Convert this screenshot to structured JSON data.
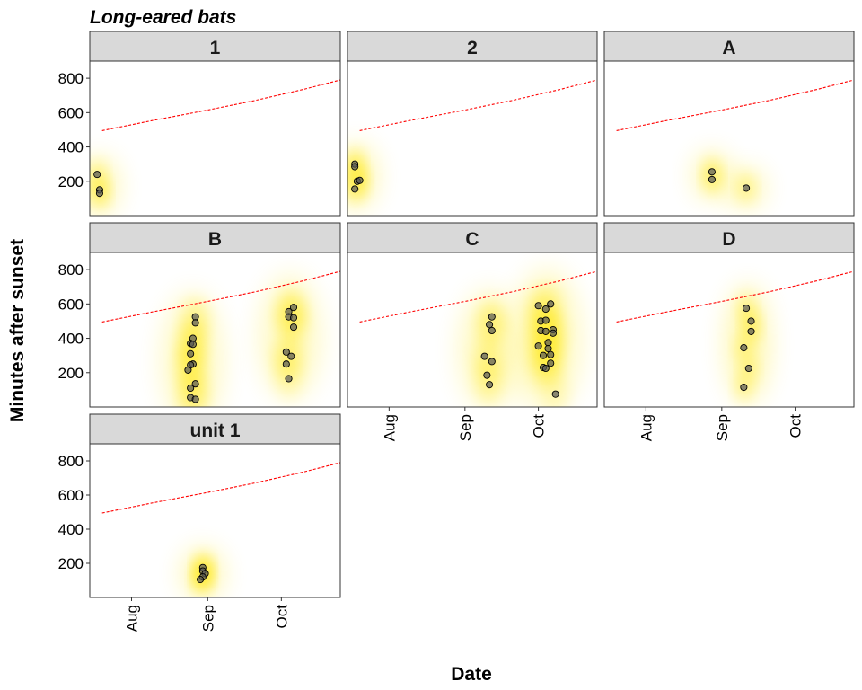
{
  "chart_data": {
    "type": "scatter",
    "title": "Long-eared bats",
    "xlabel": "Date",
    "ylabel": "Minutes after sunset",
    "x_axis": {
      "kind": "date",
      "range": [
        "2023-07-15",
        "2023-10-25"
      ],
      "ticks": [
        {
          "label": "Aug",
          "value": "2023-08-01"
        },
        {
          "label": "Sep",
          "value": "2023-09-01"
        },
        {
          "label": "Oct",
          "value": "2023-10-01"
        }
      ]
    },
    "y_axis": {
      "range": [
        0,
        900
      ],
      "ticks": [
        200,
        400,
        600,
        800
      ]
    },
    "sunrise_line": {
      "style": "red-dashed",
      "color": "#ff0000",
      "points": [
        {
          "x": "2023-07-20",
          "y": 495
        },
        {
          "x": "2023-08-10",
          "y": 555
        },
        {
          "x": "2023-09-01",
          "y": 615
        },
        {
          "x": "2023-09-20",
          "y": 670
        },
        {
          "x": "2023-10-10",
          "y": 735
        },
        {
          "x": "2023-10-25",
          "y": 790
        }
      ]
    },
    "panels": [
      {
        "label": "1",
        "points": [
          {
            "x": "2023-07-18",
            "y": 240
          },
          {
            "x": "2023-07-19",
            "y": 150
          },
          {
            "x": "2023-07-19",
            "y": 130
          }
        ]
      },
      {
        "label": "2",
        "points": [
          {
            "x": "2023-07-18",
            "y": 300
          },
          {
            "x": "2023-07-18",
            "y": 285
          },
          {
            "x": "2023-07-19",
            "y": 200
          },
          {
            "x": "2023-07-20",
            "y": 205
          },
          {
            "x": "2023-07-18",
            "y": 155
          }
        ]
      },
      {
        "label": "A",
        "points": [
          {
            "x": "2023-08-28",
            "y": 255
          },
          {
            "x": "2023-08-28",
            "y": 210
          },
          {
            "x": "2023-09-11",
            "y": 160
          }
        ]
      },
      {
        "label": "B",
        "points": [
          {
            "x": "2023-08-27",
            "y": 525
          },
          {
            "x": "2023-08-27",
            "y": 490
          },
          {
            "x": "2023-08-26",
            "y": 400
          },
          {
            "x": "2023-08-25",
            "y": 370
          },
          {
            "x": "2023-08-26",
            "y": 365
          },
          {
            "x": "2023-08-25",
            "y": 310
          },
          {
            "x": "2023-08-26",
            "y": 250
          },
          {
            "x": "2023-08-25",
            "y": 245
          },
          {
            "x": "2023-08-24",
            "y": 215
          },
          {
            "x": "2023-08-27",
            "y": 135
          },
          {
            "x": "2023-08-25",
            "y": 110
          },
          {
            "x": "2023-08-25",
            "y": 55
          },
          {
            "x": "2023-08-27",
            "y": 45
          },
          {
            "x": "2023-10-04",
            "y": 555
          },
          {
            "x": "2023-10-04",
            "y": 525
          },
          {
            "x": "2023-10-06",
            "y": 580
          },
          {
            "x": "2023-10-06",
            "y": 520
          },
          {
            "x": "2023-10-06",
            "y": 465
          },
          {
            "x": "2023-10-03",
            "y": 320
          },
          {
            "x": "2023-10-05",
            "y": 295
          },
          {
            "x": "2023-10-03",
            "y": 250
          },
          {
            "x": "2023-10-04",
            "y": 165
          }
        ]
      },
      {
        "label": "C",
        "points": [
          {
            "x": "2023-09-12",
            "y": 525
          },
          {
            "x": "2023-09-11",
            "y": 480
          },
          {
            "x": "2023-09-12",
            "y": 445
          },
          {
            "x": "2023-09-09",
            "y": 295
          },
          {
            "x": "2023-09-12",
            "y": 265
          },
          {
            "x": "2023-09-10",
            "y": 185
          },
          {
            "x": "2023-09-11",
            "y": 130
          },
          {
            "x": "2023-10-01",
            "y": 590
          },
          {
            "x": "2023-10-04",
            "y": 570
          },
          {
            "x": "2023-10-06",
            "y": 600
          },
          {
            "x": "2023-10-02",
            "y": 500
          },
          {
            "x": "2023-10-04",
            "y": 505
          },
          {
            "x": "2023-10-02",
            "y": 445
          },
          {
            "x": "2023-10-04",
            "y": 440
          },
          {
            "x": "2023-10-07",
            "y": 450
          },
          {
            "x": "2023-10-07",
            "y": 430
          },
          {
            "x": "2023-10-01",
            "y": 355
          },
          {
            "x": "2023-10-05",
            "y": 375
          },
          {
            "x": "2023-10-05",
            "y": 340
          },
          {
            "x": "2023-10-03",
            "y": 300
          },
          {
            "x": "2023-10-06",
            "y": 305
          },
          {
            "x": "2023-10-06",
            "y": 255
          },
          {
            "x": "2023-10-03",
            "y": 230
          },
          {
            "x": "2023-10-04",
            "y": 225
          },
          {
            "x": "2023-10-08",
            "y": 75
          }
        ]
      },
      {
        "label": "D",
        "points": [
          {
            "x": "2023-09-11",
            "y": 575
          },
          {
            "x": "2023-09-13",
            "y": 500
          },
          {
            "x": "2023-09-13",
            "y": 440
          },
          {
            "x": "2023-09-10",
            "y": 345
          },
          {
            "x": "2023-09-12",
            "y": 225
          },
          {
            "x": "2023-09-10",
            "y": 115
          }
        ]
      },
      {
        "label": "unit 1",
        "points": [
          {
            "x": "2023-08-30",
            "y": 175
          },
          {
            "x": "2023-08-30",
            "y": 155
          },
          {
            "x": "2023-08-31",
            "y": 140
          },
          {
            "x": "2023-08-30",
            "y": 120
          },
          {
            "x": "2023-08-29",
            "y": 105
          }
        ]
      }
    ],
    "colors": {
      "density": "#ffe600",
      "point_fill": "#555555",
      "strip_fill": "#d9d9d9"
    },
    "grid": false,
    "legend": "none"
  }
}
